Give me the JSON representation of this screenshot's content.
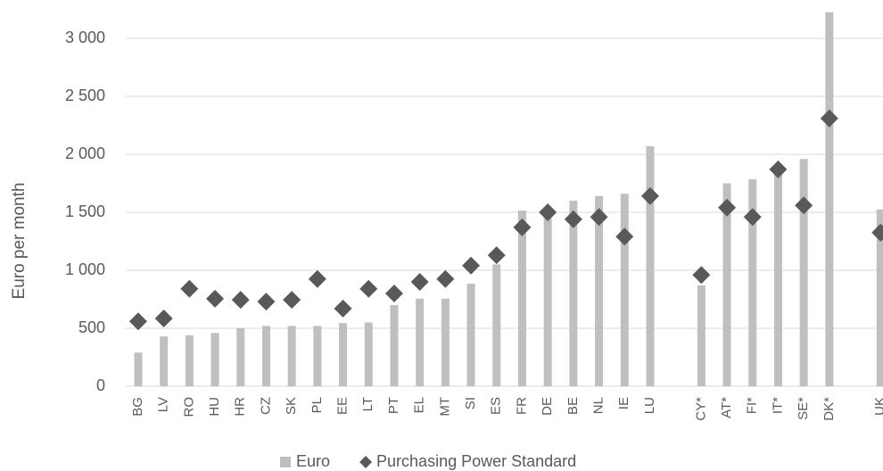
{
  "chart_data": {
    "type": "bar+scatter",
    "y_axis_label": "Euro per month",
    "categories": [
      "BG",
      "LV",
      "RO",
      "HU",
      "HR",
      "CZ",
      "SK",
      "PL",
      "EE",
      "LT",
      "PT",
      "EL",
      "MT",
      "SI",
      "ES",
      "FR",
      "DE",
      "BE",
      "NL",
      "IE",
      "LU",
      null,
      "CY*",
      "AT*",
      "FI*",
      "IT*",
      "SE*",
      "DK*",
      null,
      "UK"
    ],
    "series": [
      {
        "name": "Euro",
        "type": "bar",
        "color": "#bfbfbf",
        "values": [
          290,
          430,
          440,
          460,
          500,
          520,
          520,
          520,
          545,
          550,
          700,
          755,
          755,
          885,
          1050,
          1515,
          1480,
          1600,
          1640,
          1660,
          2070,
          null,
          870,
          1750,
          1785,
          1870,
          1960,
          3225,
          null,
          1525
        ]
      },
      {
        "name": "Purchasing Power Standard",
        "type": "scatter",
        "color": "#595959",
        "values": [
          560,
          585,
          840,
          755,
          745,
          730,
          745,
          925,
          670,
          840,
          800,
          900,
          925,
          1040,
          1130,
          1370,
          1500,
          1440,
          1460,
          1290,
          1640,
          null,
          960,
          1540,
          1460,
          1870,
          1560,
          2310,
          null,
          1325
        ]
      }
    ],
    "ylim": [
      0,
      3200
    ],
    "yticks": [
      0,
      500,
      {
        "value": 1000,
        "label": "1 000"
      },
      {
        "value": 1500,
        "label": "1 500"
      },
      {
        "value": 2000,
        "label": "2 000"
      },
      {
        "value": 2500,
        "label": "2 500"
      },
      {
        "value": 3000,
        "label": "3 000"
      }
    ],
    "grid": true,
    "legend": "bottom"
  }
}
